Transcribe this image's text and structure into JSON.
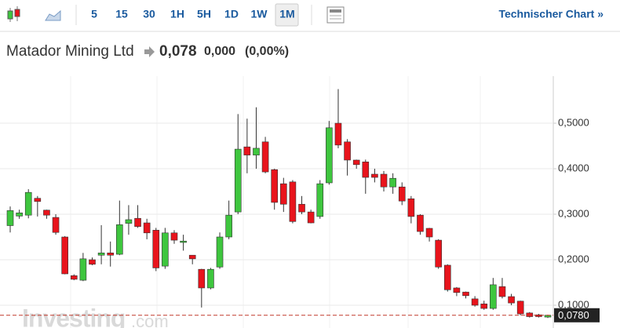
{
  "toolbar": {
    "intervals": [
      "5",
      "15",
      "30",
      "1H",
      "5H",
      "1D",
      "1W",
      "1M"
    ],
    "selected": 7,
    "link": "Technischer Chart »"
  },
  "header": {
    "name": "Matador Mining Ltd",
    "price": "0,078",
    "change": "0,000",
    "percent": "(0,00%)"
  },
  "watermark": {
    "brand": "Investing",
    "suffix": ".com"
  },
  "chart_data": {
    "type": "candlestick",
    "open": [
      0.275,
      0.296,
      0.298,
      0.335,
      0.309,
      0.293,
      0.25,
      0.165,
      0.155,
      0.2,
      0.21,
      0.215,
      0.212,
      0.28,
      0.291,
      0.281,
      0.265,
      0.186,
      0.259,
      0.238,
      0.21,
      0.179,
      0.138,
      0.184,
      0.25,
      0.305,
      0.448,
      0.43,
      0.459,
      0.398,
      0.367,
      0.371,
      0.322,
      0.305,
      0.295,
      0.369,
      0.5,
      0.459,
      0.419,
      0.415,
      0.388,
      0.388,
      0.36,
      0.36,
      0.334,
      0.298,
      0.269,
      0.243,
      0.188,
      0.138,
      0.129,
      0.114,
      0.103,
      0.093,
      0.141,
      0.119,
      0.109,
      0.083,
      0.079,
      0.074
    ],
    "high": [
      0.317,
      0.31,
      0.355,
      0.34,
      0.31,
      0.3,
      0.252,
      0.168,
      0.215,
      0.205,
      0.276,
      0.24,
      0.33,
      0.32,
      0.32,
      0.29,
      0.27,
      0.27,
      0.265,
      0.255,
      0.21,
      0.18,
      0.182,
      0.26,
      0.33,
      0.52,
      0.51,
      0.535,
      0.47,
      0.4,
      0.38,
      0.375,
      0.34,
      0.31,
      0.375,
      0.505,
      0.575,
      0.465,
      0.42,
      0.42,
      0.4,
      0.395,
      0.39,
      0.37,
      0.34,
      0.3,
      0.27,
      0.245,
      0.19,
      0.14,
      0.13,
      0.12,
      0.11,
      0.16,
      0.16,
      0.125,
      0.11,
      0.085,
      0.081,
      0.079
    ],
    "low": [
      0.26,
      0.29,
      0.291,
      0.295,
      0.29,
      0.255,
      0.168,
      0.155,
      0.153,
      0.188,
      0.19,
      0.185,
      0.21,
      0.255,
      0.27,
      0.245,
      0.175,
      0.18,
      0.235,
      0.22,
      0.19,
      0.095,
      0.135,
      0.18,
      0.245,
      0.3,
      0.39,
      0.4,
      0.39,
      0.31,
      0.305,
      0.28,
      0.3,
      0.28,
      0.29,
      0.365,
      0.445,
      0.385,
      0.4,
      0.345,
      0.37,
      0.35,
      0.345,
      0.32,
      0.28,
      0.255,
      0.24,
      0.18,
      0.13,
      0.12,
      0.115,
      0.097,
      0.09,
      0.09,
      0.115,
      0.1,
      0.078,
      0.073,
      0.073,
      0.072
    ],
    "close": [
      0.308,
      0.303,
      0.348,
      0.328,
      0.298,
      0.26,
      0.169,
      0.157,
      0.202,
      0.19,
      0.215,
      0.21,
      0.277,
      0.288,
      0.273,
      0.259,
      0.182,
      0.259,
      0.243,
      0.241,
      0.202,
      0.138,
      0.179,
      0.25,
      0.298,
      0.443,
      0.43,
      0.445,
      0.393,
      0.326,
      0.322,
      0.284,
      0.305,
      0.281,
      0.367,
      0.49,
      0.452,
      0.419,
      0.409,
      0.381,
      0.381,
      0.36,
      0.379,
      0.329,
      0.295,
      0.262,
      0.25,
      0.184,
      0.134,
      0.128,
      0.121,
      0.1,
      0.093,
      0.145,
      0.119,
      0.105,
      0.081,
      0.075,
      0.075,
      0.078
    ],
    "up_color": "#3ec63e",
    "down_color": "#e8141c",
    "ylim": [
      0.05,
      0.6035
    ],
    "yticks": [
      {
        "value": 0.1,
        "label": "0,1000"
      },
      {
        "value": 0.2,
        "label": "0,2000"
      },
      {
        "value": 0.3,
        "label": "0,3000"
      },
      {
        "value": 0.4,
        "label": "0,4000"
      },
      {
        "value": 0.5,
        "label": "0,5000"
      }
    ],
    "grid": true,
    "last": {
      "value": 0.078,
      "label": "0,0780"
    }
  }
}
